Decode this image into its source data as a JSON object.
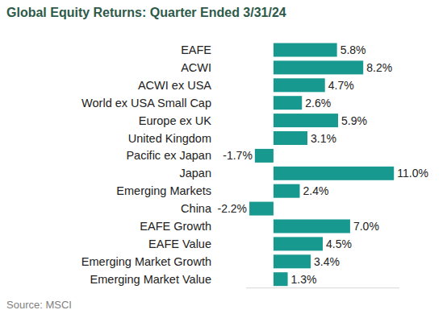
{
  "chart_data": {
    "type": "bar",
    "orientation": "horizontal",
    "title": "Global Equity Returns: Quarter Ended 3/31/24",
    "source": "Source: MSCI",
    "categories": [
      "EAFE",
      "ACWI",
      "ACWI ex USA",
      "World ex USA Small Cap",
      "Europe ex UK",
      "United Kingdom",
      "Pacific ex Japan",
      "Japan",
      "Emerging Markets",
      "China",
      "EAFE Growth",
      "EAFE Value",
      "Emerging Market Growth",
      "Emerging Market Value"
    ],
    "values": [
      5.8,
      8.2,
      4.7,
      2.6,
      5.9,
      3.1,
      -1.7,
      11.0,
      2.4,
      -2.2,
      7.0,
      4.5,
      3.4,
      1.3
    ],
    "value_labels": [
      "5.8%",
      "8.2%",
      "4.7%",
      "2.6%",
      "5.9%",
      "3.1%",
      "-1.7%",
      "11.0%",
      "2.4%",
      "-2.2%",
      "7.0%",
      "4.5%",
      "3.4%",
      "1.3%"
    ],
    "color": "#17998f",
    "xlim": [
      -2.5,
      11.5
    ],
    "grid": false,
    "data_labels": true,
    "tick_labels": "y"
  }
}
